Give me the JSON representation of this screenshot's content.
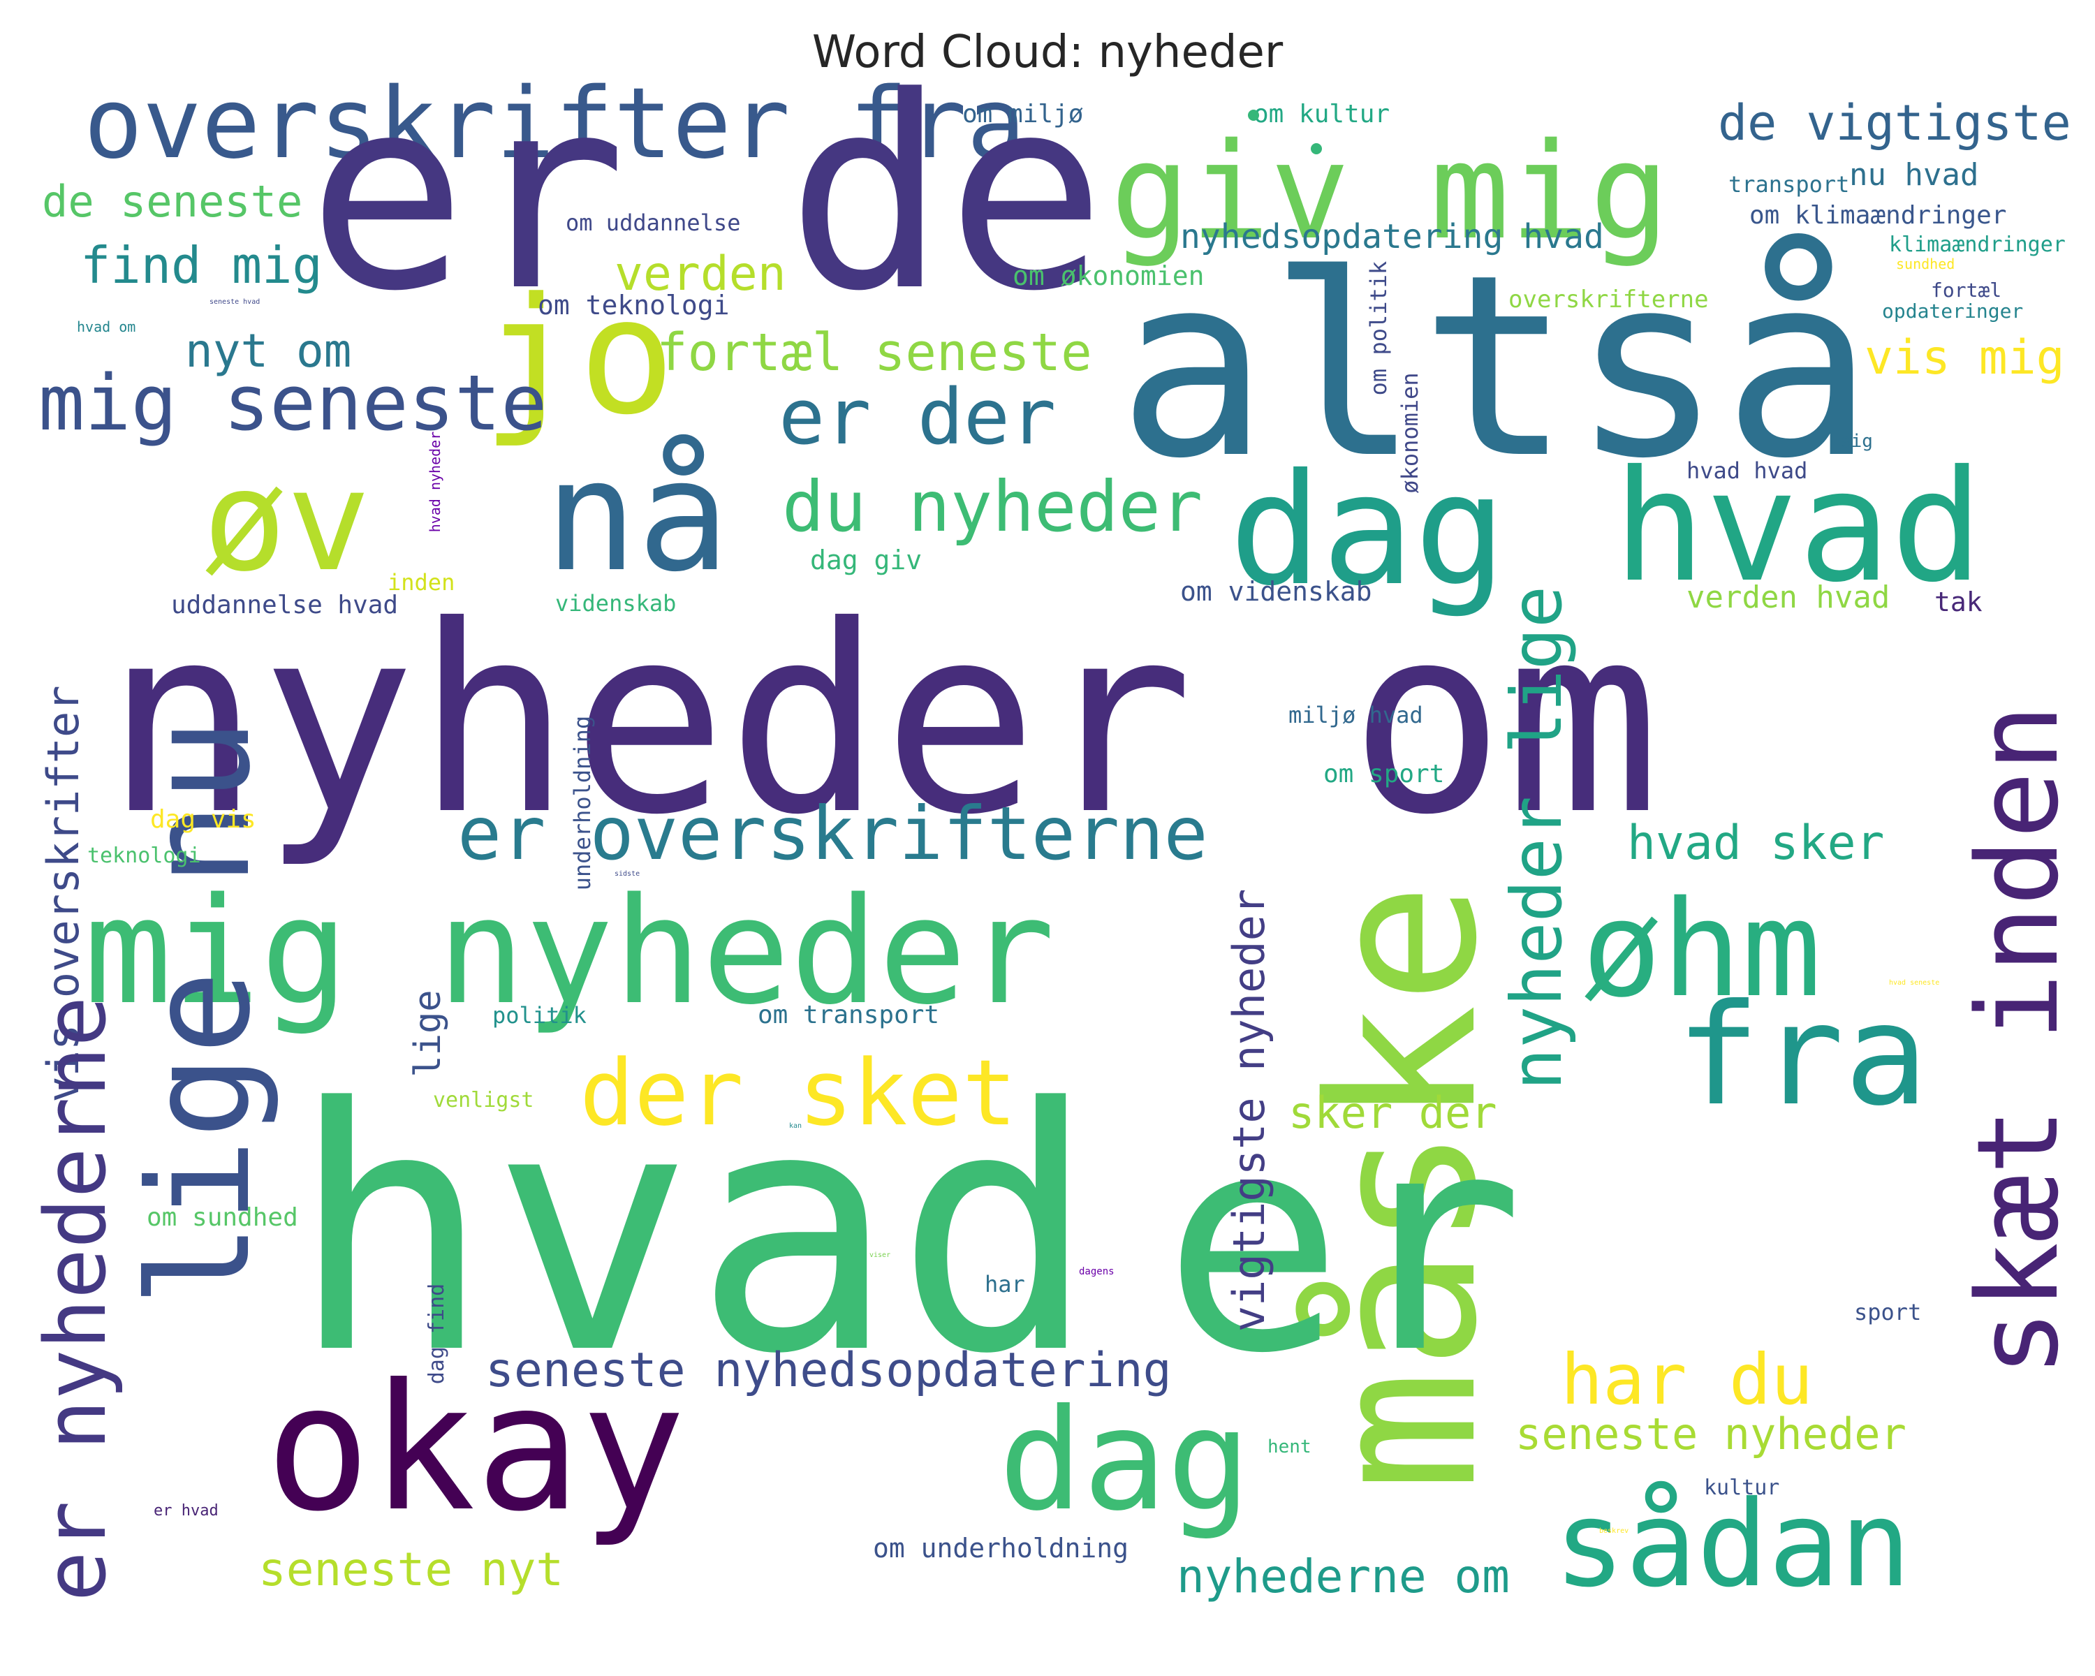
{
  "title": "Word Cloud: nyheder",
  "words": [
    {
      "text": "overskrifter fra",
      "color": "#38598c"
    },
    {
      "text": "er de",
      "color": "#453781"
    },
    {
      "text": "giv mig",
      "color": "#6ccd5a"
    },
    {
      "text": "de vigtigste",
      "color": "#33638d"
    },
    {
      "text": "altså",
      "color": "#2d708e"
    },
    {
      "text": "de seneste",
      "color": "#56c667"
    },
    {
      "text": "find mig",
      "color": "#238a8d"
    },
    {
      "text": "verden",
      "color": "#b5de2b"
    },
    {
      "text": "nyt om",
      "color": "#2a788e"
    },
    {
      "text": "jo",
      "color": "#c2df23"
    },
    {
      "text": "fortæl seneste",
      "color": "#8fd744"
    },
    {
      "text": "mig seneste",
      "color": "#3b528b"
    },
    {
      "text": "er der",
      "color": "#2c728e"
    },
    {
      "text": "vis mig",
      "color": "#fde725"
    },
    {
      "text": "øv",
      "color": "#b5de2b"
    },
    {
      "text": "nå",
      "color": "#31688e"
    },
    {
      "text": "dag",
      "color": "#1f9e89"
    },
    {
      "text": "hvad",
      "color": "#21a685"
    },
    {
      "text": "du nyheder",
      "color": "#3dbc74"
    },
    {
      "text": "nyheder om",
      "color": "#472d7b"
    },
    {
      "text": "vis overskrifter",
      "color": "#3e4a89"
    },
    {
      "text": "er overskrifterne",
      "color": "#297b8e"
    },
    {
      "text": "hvad sker",
      "color": "#22a884"
    },
    {
      "text": "mig nyheder",
      "color": "#3dbc74"
    },
    {
      "text": "øhm",
      "color": "#28ae80"
    },
    {
      "text": "lige nu",
      "color": "#3b528b"
    },
    {
      "text": "nyheder lige",
      "color": "#20a386"
    },
    {
      "text": "fra",
      "color": "#1f968b"
    },
    {
      "text": "skæt inden",
      "color": "#482475"
    },
    {
      "text": "der sket",
      "color": "#fde725"
    },
    {
      "text": "måske",
      "color": "#8fd744"
    },
    {
      "text": "er nyhederne",
      "color": "#443983"
    },
    {
      "text": "hvad",
      "color": "#3dbc74"
    },
    {
      "text": "er",
      "color": "#3dbc74"
    },
    {
      "text": "vigtigste nyheder",
      "color": "#433e85"
    },
    {
      "text": "sker der",
      "color": "#a0da39"
    },
    {
      "text": "lige",
      "color": "#3b528b"
    },
    {
      "text": "seneste nyhedsopdatering",
      "color": "#3e4c8a"
    },
    {
      "text": "har du",
      "color": "#fde725"
    },
    {
      "text": "okay",
      "color": "#440154"
    },
    {
      "text": "dag",
      "color": "#3dbc74"
    },
    {
      "text": "seneste nyheder",
      "color": "#a8db34"
    },
    {
      "text": "sådan",
      "color": "#22a884"
    },
    {
      "text": "seneste nyt",
      "color": "#b5de2b"
    },
    {
      "text": "nyhederne om",
      "color": "#1e9b8a"
    },
    {
      "text": "om miljø",
      "color": "#33638d"
    },
    {
      "text": "om kultur",
      "color": "#22a884"
    },
    {
      "text": "transport",
      "color": "#2c728e"
    },
    {
      "text": "nu hvad",
      "color": "#2d708e"
    },
    {
      "text": "om klimaændringer",
      "color": "#39568c"
    },
    {
      "text": "klimaændringer",
      "color": "#1f9e89"
    },
    {
      "text": "om uddannelse",
      "color": "#3f4889"
    },
    {
      "text": "nyhedsopdatering hvad",
      "color": "#2a788e"
    },
    {
      "text": "om økonomien",
      "color": "#4ac16d"
    },
    {
      "text": "om teknologi",
      "color": "#3e4a89"
    },
    {
      "text": "overskrifterne",
      "color": "#8fd744"
    },
    {
      "text": "fortæl",
      "color": "#3e4989"
    },
    {
      "text": "opdateringer",
      "color": "#25848e"
    },
    {
      "text": "sundhed",
      "color": "#fde725"
    },
    {
      "text": "hvad om",
      "color": "#24868e"
    },
    {
      "text": "seneste hvad",
      "color": "#3f4889"
    },
    {
      "text": "sig",
      "color": "#2d708e"
    },
    {
      "text": "hvad hvad",
      "color": "#3e4a89"
    },
    {
      "text": "om politik",
      "color": "#3e4a89"
    },
    {
      "text": "økonomien",
      "color": "#3f4788"
    },
    {
      "text": "hvad nyheder",
      "color": "#6a00a8"
    },
    {
      "text": "dag giv",
      "color": "#35b779"
    },
    {
      "text": "uddannelse hvad",
      "color": "#3e4a89"
    },
    {
      "text": "inden",
      "color": "#d2e21b"
    },
    {
      "text": "videnskab",
      "color": "#35b779"
    },
    {
      "text": "om videnskab",
      "color": "#3b528b"
    },
    {
      "text": "verden hvad",
      "color": "#8fd744"
    },
    {
      "text": "tak",
      "color": "#482878"
    },
    {
      "text": "miljø hvad",
      "color": "#31688e"
    },
    {
      "text": "om sport",
      "color": "#22a884"
    },
    {
      "text": "underholdning",
      "color": "#3b528b"
    },
    {
      "text": "dag vis",
      "color": "#fde725"
    },
    {
      "text": "teknologi",
      "color": "#4ac16d"
    },
    {
      "text": "politik",
      "color": "#21918c"
    },
    {
      "text": "om transport",
      "color": "#2c728e"
    },
    {
      "text": "venligst",
      "color": "#a0da39"
    },
    {
      "text": "om sundhed",
      "color": "#56c667"
    },
    {
      "text": "dag find",
      "color": "#3e4a89"
    },
    {
      "text": "har",
      "color": "#2d708e"
    },
    {
      "text": "dagens",
      "color": "#6a00a8"
    },
    {
      "text": "sport",
      "color": "#3b528b"
    },
    {
      "text": "hent",
      "color": "#35b779"
    },
    {
      "text": "kultur",
      "color": "#3b528b"
    },
    {
      "text": "er hvad",
      "color": "#482475"
    },
    {
      "text": "om underholdning",
      "color": "#3b528b"
    },
    {
      "text": "sidste",
      "color": "#3e4a89"
    },
    {
      "text": "viser",
      "color": "#7ad151"
    },
    {
      "text": "kan",
      "color": "#23898e"
    },
    {
      "text": "hvad seneste",
      "color": "#fde725"
    },
    {
      "text": "beskrev",
      "color": "#fde725"
    }
  ]
}
